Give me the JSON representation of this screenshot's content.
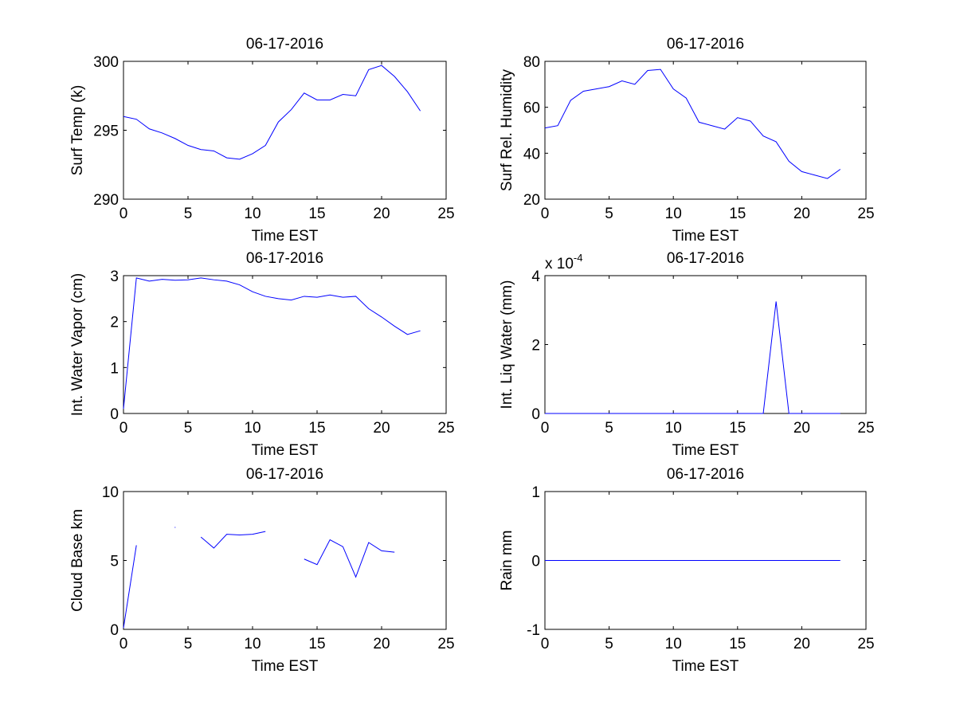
{
  "chart_data": [
    {
      "type": "line",
      "title": "06-17-2016",
      "xlabel": "Time EST",
      "ylabel": "Surf Temp (k)",
      "xlim": [
        0,
        25
      ],
      "ylim": [
        290,
        300
      ],
      "xticks": [
        "0",
        "5",
        "10",
        "15",
        "20",
        "25"
      ],
      "yticks": [
        "290",
        "295",
        "300"
      ],
      "grid": false,
      "color": "#0000ff",
      "series": [
        {
          "x": [
            0,
            1,
            2,
            3,
            4,
            5,
            6,
            7,
            8,
            9,
            10,
            11,
            12,
            13,
            14,
            15,
            16,
            17,
            18,
            19,
            20,
            21,
            22,
            23
          ],
          "y": [
            296.0,
            295.8,
            295.1,
            294.8,
            294.4,
            293.9,
            293.6,
            293.5,
            293.0,
            292.9,
            293.3,
            293.9,
            295.6,
            296.5,
            297.7,
            297.2,
            297.2,
            297.6,
            297.5,
            299.4,
            299.7,
            298.9,
            297.8,
            296.4
          ]
        }
      ]
    },
    {
      "type": "line",
      "title": "06-17-2016",
      "xlabel": "Time EST",
      "ylabel": "Surf Rel. Humidity",
      "xlim": [
        0,
        25
      ],
      "ylim": [
        20,
        80
      ],
      "xticks": [
        "0",
        "5",
        "10",
        "15",
        "20",
        "25"
      ],
      "yticks": [
        "20",
        "40",
        "60",
        "80"
      ],
      "grid": false,
      "color": "#0000ff",
      "series": [
        {
          "x": [
            0,
            1,
            2,
            3,
            4,
            5,
            6,
            7,
            8,
            9,
            10,
            11,
            12,
            13,
            14,
            15,
            16,
            17,
            18,
            19,
            20,
            21,
            22,
            23
          ],
          "y": [
            51,
            52,
            63,
            67,
            68,
            69,
            71.5,
            70,
            76,
            76.5,
            68,
            64,
            53.5,
            52,
            50.5,
            55.5,
            54,
            47.5,
            45,
            36.5,
            32,
            30.5,
            29,
            33
          ]
        }
      ]
    },
    {
      "type": "line",
      "title": "06-17-2016",
      "xlabel": "Time EST",
      "ylabel": "Int. Water Vapor (cm)",
      "xlim": [
        0,
        25
      ],
      "ylim": [
        0,
        3
      ],
      "xticks": [
        "0",
        "5",
        "10",
        "15",
        "20",
        "25"
      ],
      "yticks": [
        "0",
        "1",
        "2",
        "3"
      ],
      "grid": false,
      "color": "#0000ff",
      "series": [
        {
          "x": [
            0,
            1,
            2,
            3,
            4,
            5,
            6,
            7,
            8,
            9,
            10,
            11,
            12,
            13,
            14,
            15,
            16,
            17,
            18,
            19,
            20,
            21,
            22,
            23
          ],
          "y": [
            0.1,
            2.95,
            2.88,
            2.92,
            2.9,
            2.91,
            2.95,
            2.91,
            2.88,
            2.8,
            2.65,
            2.55,
            2.5,
            2.47,
            2.55,
            2.53,
            2.58,
            2.53,
            2.55,
            2.28,
            2.1,
            1.9,
            1.72,
            1.8
          ]
        }
      ]
    },
    {
      "type": "line",
      "title": "06-17-2016",
      "xlabel": "Time EST",
      "ylabel": "Int. Liq Water (mm)",
      "xlim": [
        0,
        25
      ],
      "ylim": [
        0,
        4
      ],
      "exponent": "x 10",
      "exponent_power": "-4",
      "xticks": [
        "0",
        "5",
        "10",
        "15",
        "20",
        "25"
      ],
      "yticks": [
        "0",
        "2",
        "4"
      ],
      "grid": false,
      "color": "#0000ff",
      "series": [
        {
          "x": [
            0,
            1,
            2,
            3,
            4,
            5,
            6,
            7,
            8,
            9,
            10,
            11,
            12,
            13,
            14,
            15,
            16,
            17,
            18,
            19,
            20,
            21,
            22,
            23
          ],
          "y": [
            0,
            0,
            0,
            0,
            0,
            0,
            0,
            0,
            0,
            0,
            0,
            0,
            0,
            0,
            0,
            0,
            0,
            0,
            3.25,
            0,
            0,
            0,
            0,
            0
          ]
        }
      ]
    },
    {
      "type": "line",
      "title": "06-17-2016",
      "xlabel": "Time EST",
      "ylabel": "Cloud Base km",
      "xlim": [
        0,
        25
      ],
      "ylim": [
        0,
        10
      ],
      "xticks": [
        "0",
        "5",
        "10",
        "15",
        "20",
        "25"
      ],
      "yticks": [
        "0",
        "5",
        "10"
      ],
      "grid": false,
      "color": "#0000ff",
      "series": [
        {
          "x": [
            0,
            1,
            2,
            3,
            4,
            5,
            6,
            7,
            8,
            9,
            10,
            11,
            12,
            13,
            14,
            15,
            16,
            17,
            18,
            19,
            20,
            21,
            22,
            23
          ],
          "y": [
            0.1,
            6.1,
            null,
            null,
            7.4,
            null,
            6.7,
            5.9,
            6.9,
            6.85,
            6.9,
            7.1,
            null,
            null,
            5.1,
            4.7,
            6.5,
            6.0,
            3.8,
            6.3,
            5.7,
            5.6,
            null,
            null
          ]
        }
      ]
    },
    {
      "type": "line",
      "title": "06-17-2016",
      "xlabel": "Time EST",
      "ylabel": "Rain mm",
      "xlim": [
        0,
        25
      ],
      "ylim": [
        -1,
        1
      ],
      "xticks": [
        "0",
        "5",
        "10",
        "15",
        "20",
        "25"
      ],
      "yticks": [
        "-1",
        "0",
        "1"
      ],
      "grid": false,
      "color": "#0000ff",
      "series": [
        {
          "x": [
            0,
            1,
            2,
            3,
            4,
            5,
            6,
            7,
            8,
            9,
            10,
            11,
            12,
            13,
            14,
            15,
            16,
            17,
            18,
            19,
            20,
            21,
            22,
            23
          ],
          "y": [
            0,
            0,
            0,
            0,
            0,
            0,
            0,
            0,
            0,
            0,
            0,
            0,
            0,
            0,
            0,
            0,
            0,
            0,
            0,
            0,
            0,
            0,
            0,
            0
          ]
        }
      ]
    }
  ]
}
